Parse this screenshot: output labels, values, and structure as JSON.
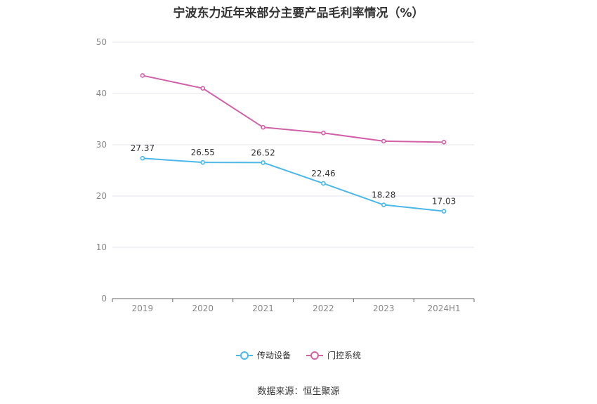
{
  "chart_data": {
    "type": "line",
    "title": "宁波东力近年来部分主要产品毛利率情况（%）",
    "xlabel": "",
    "ylabel": "",
    "categories": [
      "2019",
      "2020",
      "2021",
      "2022",
      "2023",
      "2024H1"
    ],
    "ylim": [
      0,
      50
    ],
    "yticks": [
      0,
      10,
      20,
      30,
      40,
      50
    ],
    "grid": true,
    "legend_position": "bottom",
    "series": [
      {
        "name": "传动设备",
        "color": "#4db8e8",
        "values": [
          27.37,
          26.55,
          26.52,
          22.46,
          18.28,
          17.03
        ],
        "labels": [
          "27.37",
          "26.55",
          "26.52",
          "22.46",
          "18.28",
          "17.03"
        ],
        "show_labels": true
      },
      {
        "name": "门控系统",
        "color": "#d062a8",
        "values": [
          43.5,
          41.0,
          33.4,
          32.3,
          30.7,
          30.5
        ],
        "show_labels": false
      }
    ]
  },
  "source_text": "数据来源：恒生聚源"
}
